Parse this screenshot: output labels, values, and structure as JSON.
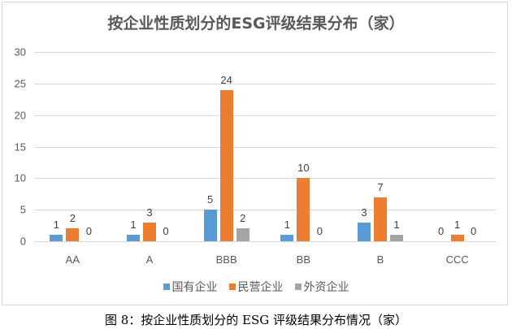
{
  "chart_data": {
    "type": "bar",
    "title": "按企业性质划分的ESG评级结果分布（家）",
    "xlabel": "",
    "ylabel": "",
    "categories": [
      "AA",
      "A",
      "BBB",
      "BB",
      "B",
      "CCC"
    ],
    "series": [
      {
        "name": "国有企业",
        "color": "#5b9bd5",
        "values": [
          1,
          1,
          5,
          1,
          3,
          0
        ]
      },
      {
        "name": "民营企业",
        "color": "#ed7d31",
        "values": [
          2,
          3,
          24,
          10,
          7,
          1
        ]
      },
      {
        "name": "外资企业",
        "color": "#a5a5a5",
        "values": [
          0,
          0,
          2,
          0,
          1,
          0
        ]
      }
    ],
    "ylim": [
      0,
      30
    ],
    "yticks": [
      0,
      5,
      10,
      15,
      20,
      25,
      30
    ],
    "grid": true,
    "legend_position": "bottom",
    "data_labels": true
  },
  "caption": "图 8：按企业性质划分的 ESG 评级结果分布情况（家）"
}
